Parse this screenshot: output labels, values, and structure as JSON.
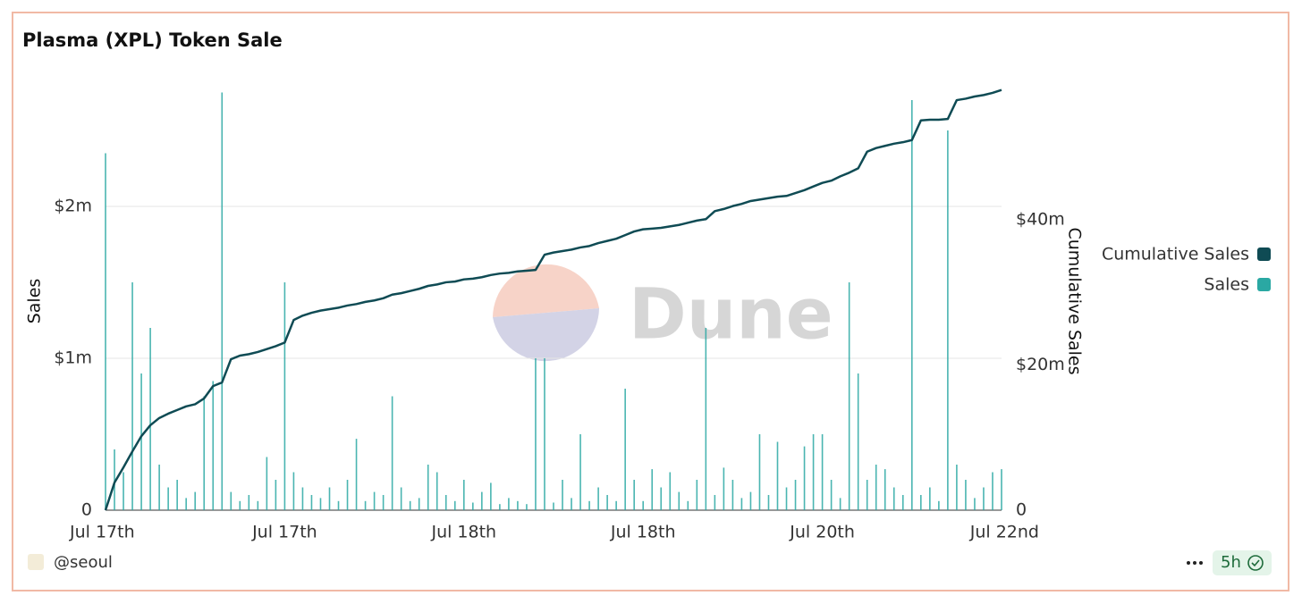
{
  "chart_data": {
    "type": "bar",
    "title": "Plasma (XPL) Token Sale",
    "y_label": "Sales",
    "y2_label": "Cumulative Sales",
    "watermark": "Dune",
    "legend": "right",
    "grid": true,
    "categories": [
      "Jul 17th",
      null,
      null,
      null,
      null,
      null,
      null,
      null,
      null,
      null,
      null,
      null,
      null,
      null,
      null,
      null,
      null,
      null,
      null,
      null,
      "Jul 17th",
      null,
      null,
      null,
      null,
      null,
      null,
      null,
      null,
      null,
      null,
      null,
      null,
      null,
      null,
      null,
      null,
      null,
      null,
      null,
      "Jul 18th",
      null,
      null,
      null,
      null,
      null,
      null,
      null,
      null,
      null,
      null,
      null,
      null,
      null,
      null,
      null,
      null,
      null,
      null,
      null,
      "Jul 18th",
      null,
      null,
      null,
      null,
      null,
      null,
      null,
      null,
      null,
      null,
      null,
      null,
      null,
      null,
      null,
      null,
      null,
      null,
      null,
      "Jul 20th",
      null,
      null,
      null,
      null,
      null,
      null,
      null,
      null,
      null,
      null,
      null,
      null,
      null,
      null,
      null,
      null,
      null,
      null,
      null,
      "Jul 22nd"
    ],
    "ylim": [
      0,
      2800000
    ],
    "yticks": [
      0,
      {
        "value": 1000000,
        "label": "$1m"
      },
      {
        "value": 2000000,
        "label": "$2m"
      }
    ],
    "y2lim": [
      0,
      58600000
    ],
    "y2ticks": [
      0,
      {
        "value": 20000000,
        "label": "$20m"
      },
      {
        "value": 40000000,
        "label": "$40m"
      }
    ],
    "series": [
      {
        "name": "Cumulative Sales",
        "type": "line",
        "axis": "y2",
        "color": "#0f4b54",
        "values": [
          0,
          3800000,
          5900000,
          8100000,
          10200000,
          11700000,
          12700000,
          13300000,
          13800000,
          14300000,
          14600000,
          15400000,
          17100000,
          17600000,
          20800000,
          21300000,
          21500000,
          21800000,
          22200000,
          22600000,
          23100000,
          26200000,
          26800000,
          27200000,
          27500000,
          27700000,
          27900000,
          28200000,
          28400000,
          28700000,
          28900000,
          29200000,
          29700000,
          29900000,
          30200000,
          30500000,
          30900000,
          31100000,
          31400000,
          31500000,
          31800000,
          31900000,
          32100000,
          32400000,
          32600000,
          32700000,
          32900000,
          33000000,
          33100000,
          35200000,
          35500000,
          35700000,
          35900000,
          36200000,
          36400000,
          36800000,
          37100000,
          37400000,
          37900000,
          38400000,
          38700000,
          38800000,
          38900000,
          39100000,
          39300000,
          39600000,
          39900000,
          40100000,
          41200000,
          41500000,
          41900000,
          42200000,
          42600000,
          42800000,
          43000000,
          43200000,
          43300000,
          43700000,
          44100000,
          44600000,
          45100000,
          45400000,
          46000000,
          46500000,
          47100000,
          49400000,
          49900000,
          50200000,
          50500000,
          50700000,
          51000000,
          53700000,
          53800000,
          53800000,
          53900000,
          56500000,
          56700000,
          57000000,
          57200000,
          57500000,
          57900000
        ]
      },
      {
        "name": "Sales",
        "type": "bar",
        "color": "#2aa8a3",
        "values": [
          2350000,
          400000,
          250000,
          1500000,
          900000,
          1200000,
          300000,
          150000,
          200000,
          80000,
          120000,
          750000,
          850000,
          2750000,
          120000,
          60000,
          100000,
          60000,
          350000,
          200000,
          1500000,
          250000,
          150000,
          100000,
          80000,
          150000,
          60000,
          200000,
          470000,
          60000,
          120000,
          100000,
          750000,
          150000,
          60000,
          80000,
          300000,
          250000,
          100000,
          60000,
          200000,
          50000,
          120000,
          180000,
          40000,
          80000,
          60000,
          40000,
          1000000,
          1000000,
          50000,
          200000,
          80000,
          500000,
          60000,
          150000,
          100000,
          60000,
          800000,
          200000,
          60000,
          270000,
          150000,
          250000,
          120000,
          60000,
          200000,
          1200000,
          100000,
          280000,
          200000,
          80000,
          120000,
          500000,
          100000,
          450000,
          150000,
          200000,
          420000,
          500000,
          500000,
          200000,
          80000,
          1500000,
          900000,
          200000,
          300000,
          270000,
          150000,
          100000,
          2700000,
          100000,
          150000,
          60000,
          2500000,
          300000,
          200000,
          80000,
          150000,
          250000,
          270000
        ]
      }
    ]
  },
  "footer": {
    "author": "@seoul",
    "age": "5h"
  }
}
